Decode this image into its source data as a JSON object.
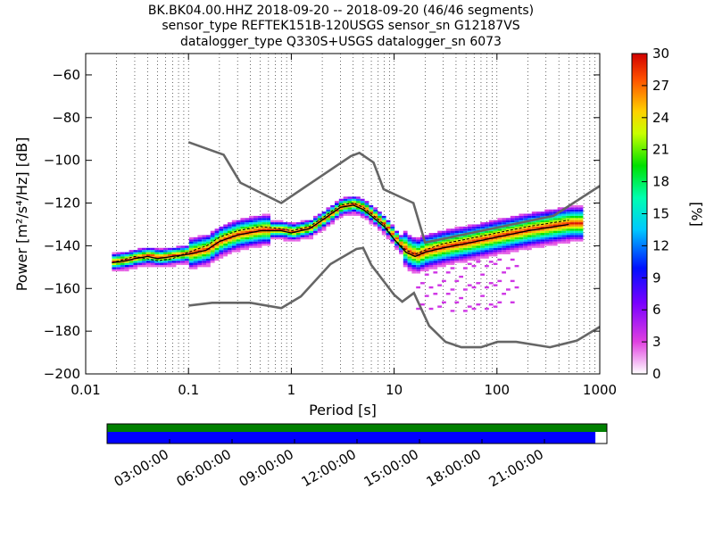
{
  "chart_data": {
    "type": "heatmap",
    "title_lines": [
      "BK.BK04.00.HHZ   2018-09-20 -- 2018-09-20  (46/46 segments)",
      "sensor_type REFTEK151B-120USGS sensor_sn G12187VS",
      "datalogger_type Q330S+USGS datalogger_sn 6073"
    ],
    "xlabel": "Period [s]",
    "ylabel": "Power [m²/s⁴/Hz] [dB]",
    "xscale": "log",
    "xlim": [
      0.01,
      1000
    ],
    "ylim": [
      -200,
      -50
    ],
    "xtick_values": [
      0.01,
      0.1,
      1,
      10,
      100,
      1000
    ],
    "xtick_labels": [
      "0.01",
      "0.1",
      "1",
      "10",
      "100",
      "1000"
    ],
    "ytick_values": [
      -200,
      -180,
      -160,
      -140,
      -120,
      -100,
      -80,
      -60
    ],
    "ytick_labels": [
      "−200",
      "−180",
      "−160",
      "−140",
      "−120",
      "−100",
      "−80",
      "−60"
    ],
    "colorbar": {
      "label": "[%]",
      "range": [
        0,
        30
      ],
      "tick_values": [
        0,
        3,
        6,
        9,
        12,
        15,
        18,
        21,
        24,
        27,
        30
      ],
      "tick_labels": [
        "0",
        "3",
        "6",
        "9",
        "12",
        "15",
        "18",
        "21",
        "24",
        "27",
        "30"
      ]
    },
    "noise_model_high": {
      "periods": [
        0.1,
        0.22,
        0.32,
        0.8,
        3.8,
        4.6,
        6.3,
        7.9,
        15.4,
        20,
        354.8,
        1000
      ],
      "db": [
        -91.5,
        -97.4,
        -110.5,
        -120,
        -98,
        -96.5,
        -101,
        -113.5,
        -120,
        -138.5,
        -126,
        -112
      ]
    },
    "noise_model_low": {
      "periods": [
        0.1,
        0.17,
        0.4,
        0.8,
        1.24,
        2.4,
        4.3,
        5,
        6,
        10,
        12,
        15.6,
        21.9,
        31.6,
        45,
        70,
        101,
        154,
        328,
        600,
        1000
      ],
      "db": [
        -168,
        -166.7,
        -166.7,
        -169.2,
        -163.7,
        -148.6,
        -141.5,
        -141,
        -149,
        -163,
        -166.2,
        -162.1,
        -177.5,
        -185,
        -187.5,
        -187.5,
        -185,
        -185,
        -187.5,
        -184.4,
        -178
      ]
    },
    "mean_curve": {
      "periods": [
        0.018,
        0.025,
        0.03,
        0.04,
        0.05,
        0.07,
        0.1,
        0.15,
        0.2,
        0.3,
        0.5,
        0.8,
        1.0,
        1.5,
        2.0,
        3.0,
        4.0,
        5.0,
        6.0,
        8.0,
        10,
        13,
        16,
        20,
        30,
        50,
        100,
        200,
        500
      ],
      "db": [
        -148,
        -147,
        -146,
        -145,
        -146,
        -145,
        -144,
        -142,
        -138,
        -135,
        -133,
        -133,
        -134,
        -132,
        -128,
        -122,
        -121,
        -123,
        -126,
        -131,
        -137,
        -143,
        -145,
        -143,
        -141,
        -139,
        -136,
        -133,
        -130
      ]
    },
    "mode_curve": {
      "periods": [
        0.018,
        0.03,
        0.05,
        0.07,
        0.1,
        0.15,
        0.2,
        0.3,
        0.5,
        0.8,
        1.0,
        1.5,
        2.0,
        3.0,
        4.0,
        5.0,
        6.0,
        8.0,
        10,
        13,
        16,
        20,
        30,
        50,
        100,
        200,
        500
      ],
      "db": [
        -148,
        -145,
        -147,
        -146,
        -143,
        -140,
        -136,
        -133,
        -131,
        -132,
        -133,
        -131,
        -127,
        -121,
        -120,
        -122,
        -125,
        -130,
        -137,
        -142,
        -144,
        -142,
        -139,
        -137,
        -134,
        -131,
        -128
      ]
    }
  },
  "timeline": {
    "tick_labels": [
      "03:00:00",
      "06:00:00",
      "09:00:00",
      "12:00:00",
      "15:00:00",
      "18:00:00",
      "21:00:00"
    ],
    "coverage_fraction": 0.977,
    "colors": {
      "data": "#008000",
      "psd": "#0000ff"
    }
  },
  "colors": {
    "noise_model": "#666666",
    "mean_curve": "#000000"
  }
}
